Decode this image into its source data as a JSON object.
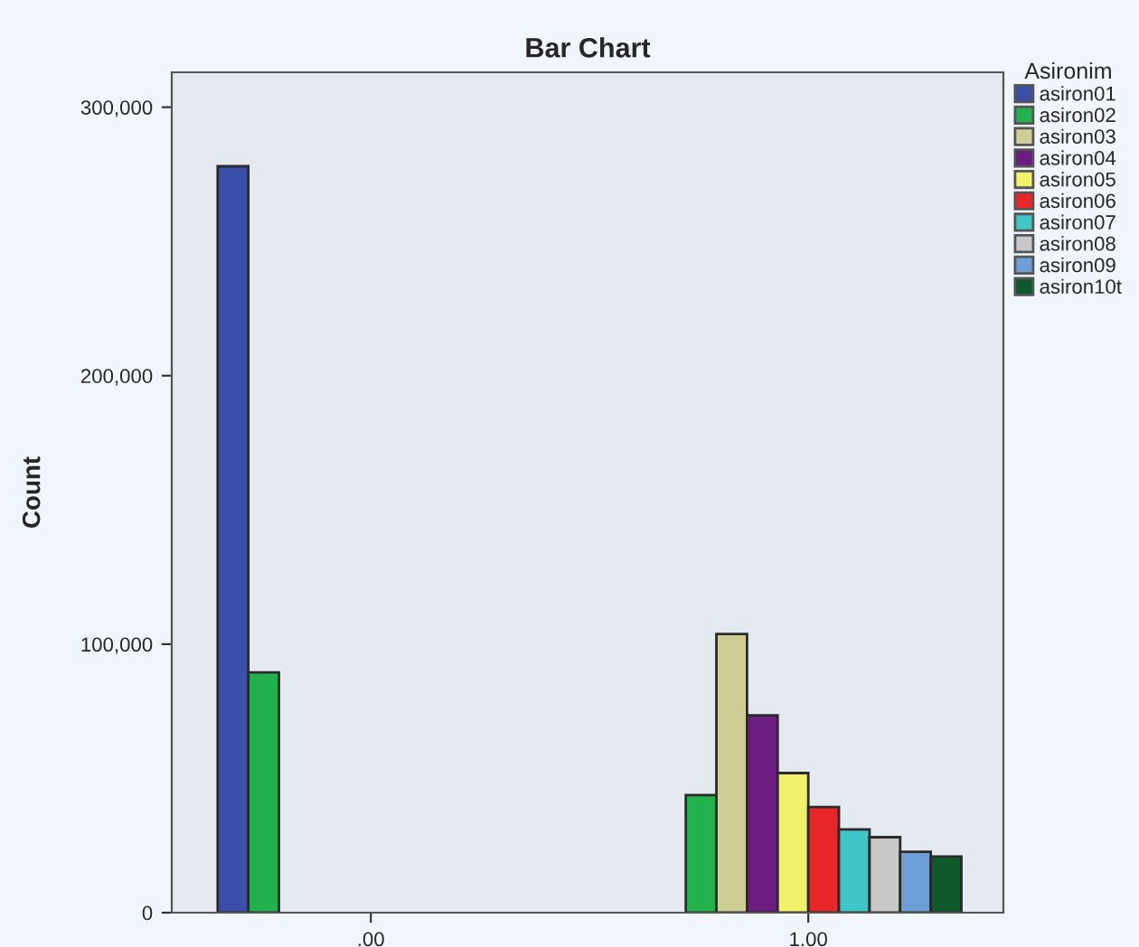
{
  "chart_data": {
    "type": "bar",
    "title": "Bar Chart",
    "ylabel": "Count",
    "legend_title": "Asironim",
    "legend": "top right",
    "grid": false,
    "categories": [
      ".00",
      "1.00"
    ],
    "ylim": [
      0,
      313000
    ],
    "yticks": [
      {
        "value": 0,
        "label": "0"
      },
      {
        "value": 100000,
        "label": "100,000"
      },
      {
        "value": 200000,
        "label": "200,000"
      },
      {
        "value": 300000,
        "label": "300,000"
      }
    ],
    "series": [
      {
        "name": "asiron01",
        "color": "#3a4fa8",
        "values": [
          278000,
          null
        ]
      },
      {
        "name": "asiron02",
        "color": "#22b14c",
        "values": [
          89500,
          43800
        ]
      },
      {
        "name": "asiron03",
        "color": "#cfcc96",
        "values": [
          null,
          103800
        ]
      },
      {
        "name": "asiron04",
        "color": "#6b1d80",
        "values": [
          null,
          73500
        ]
      },
      {
        "name": "asiron05",
        "color": "#f2f26a",
        "values": [
          null,
          52000
        ]
      },
      {
        "name": "asiron06",
        "color": "#e8262a",
        "values": [
          null,
          39300
        ]
      },
      {
        "name": "asiron07",
        "color": "#3fc6c6",
        "values": [
          null,
          31000
        ]
      },
      {
        "name": "asiron08",
        "color": "#c8c8c8",
        "values": [
          null,
          28100
        ]
      },
      {
        "name": "asiron09",
        "color": "#6e9fd6",
        "values": [
          null,
          22700
        ]
      },
      {
        "name": "asiron10t",
        "color": "#0e5a2a",
        "values": [
          null,
          20900
        ]
      }
    ]
  }
}
